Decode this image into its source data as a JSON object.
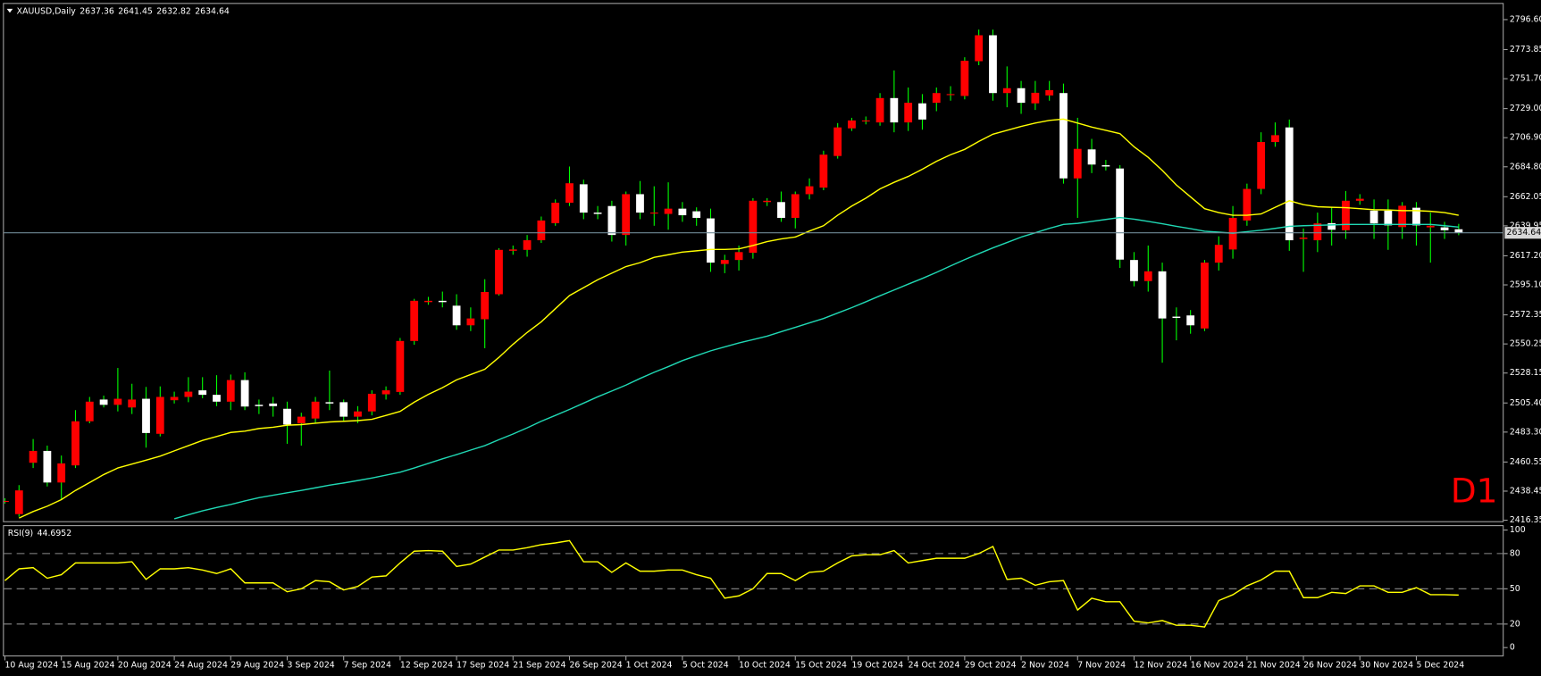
{
  "chart_data": [
    {
      "type": "candlestick",
      "title": "XAUUSD,Daily",
      "annotation": "D1",
      "annotation_color": "#ff0000",
      "up_color": "#ff0000",
      "down_color": "#ffffff",
      "wick_color": "#00ff00",
      "price_line_color": "#6f8a96",
      "grid": false,
      "categories": [
        "10 Aug 2024",
        null,
        null,
        null,
        "15 Aug 2024",
        null,
        null,
        null,
        "20 Aug 2024",
        null,
        null,
        null,
        "24 Aug 2024",
        null,
        null,
        null,
        "29 Aug 2024",
        null,
        null,
        null,
        "3 Sep 2024",
        null,
        null,
        null,
        "7 Sep 2024",
        null,
        null,
        null,
        "12 Sep 2024",
        null,
        null,
        null,
        "17 Sep 2024",
        null,
        null,
        null,
        "21 Sep 2024",
        null,
        null,
        null,
        "26 Sep 2024",
        null,
        null,
        null,
        "1 Oct 2024",
        null,
        null,
        null,
        "5 Oct 2024",
        null,
        null,
        null,
        "10 Oct 2024",
        null,
        null,
        null,
        "15 Oct 2024",
        null,
        null,
        null,
        "19 Oct 2024",
        null,
        null,
        null,
        "24 Oct 2024",
        null,
        null,
        null,
        "29 Oct 2024",
        null,
        null,
        null,
        "2 Nov 2024",
        null,
        null,
        null,
        "7 Nov 2024",
        null,
        null,
        null,
        "12 Nov 2024",
        null,
        null,
        null,
        "16 Nov 2024",
        null,
        null,
        null,
        "21 Nov 2024",
        null,
        null,
        null,
        "26 Nov 2024",
        null,
        null,
        null,
        "30 Nov 2024",
        null,
        null,
        null,
        "5 Dec 2024",
        null,
        null,
        null
      ],
      "open": [
        2431,
        2421,
        2460,
        2469,
        2445,
        2458,
        2491.5,
        2508,
        2504,
        2502,
        2508.6,
        2482,
        2507.5,
        2510,
        2515,
        2511.6,
        2506.4,
        2522.8,
        2504,
        2505,
        2501,
        2490,
        2493.6,
        2506,
        2506,
        2495,
        2499,
        2512,
        2513.8,
        2552.5,
        2582,
        2583,
        2579.3,
        2564.4,
        2569,
        2588,
        2621,
        2621.7,
        2629,
        2642,
        2657.5,
        2671.5,
        2650,
        2655,
        2633,
        2664,
        2650,
        2649,
        2653,
        2651,
        2645.6,
        2611,
        2614,
        2619.5,
        2658,
        2658,
        2646,
        2664,
        2669,
        2693,
        2714,
        2720,
        2718.5,
        2737,
        2718.5,
        2733,
        2733.4,
        2740,
        2738.6,
        2765,
        2784.7,
        2740.8,
        2744.5,
        2733,
        2739,
        2740.8,
        2676,
        2698,
        2686,
        2683.5,
        2614,
        2598,
        2605.4,
        2571,
        2571.9,
        2562,
        2612,
        2622,
        2644,
        2668,
        2703.6,
        2714.7,
        2630,
        2629,
        2642,
        2636.6,
        2659,
        2651.5,
        2651.5,
        2639,
        2653.7,
        2638.8,
        2638.8,
        2637.36
      ],
      "high": [
        2433,
        2443,
        2478,
        2473,
        2465.5,
        2500,
        2510,
        2511,
        2532,
        2520,
        2517.6,
        2518,
        2514,
        2525,
        2525,
        2526.5,
        2527,
        2528.7,
        2508,
        2510,
        2506.4,
        2498,
        2510,
        2530,
        2508,
        2503,
        2515,
        2518,
        2554.8,
        2584.5,
        2586,
        2590,
        2588,
        2578,
        2599.4,
        2623,
        2625,
        2633,
        2647,
        2660,
        2685,
        2675,
        2655,
        2659,
        2666,
        2674,
        2670,
        2673,
        2658,
        2654,
        2653,
        2618,
        2625,
        2661,
        2661,
        2666,
        2666,
        2676,
        2697,
        2718,
        2722,
        2723,
        2740.8,
        2758,
        2745,
        2740,
        2745,
        2746,
        2768,
        2789,
        2789,
        2761,
        2750,
        2750,
        2750,
        2748,
        2722,
        2706,
        2690,
        2686,
        2620,
        2625,
        2612,
        2578,
        2576,
        2614,
        2632,
        2655,
        2672,
        2711,
        2718.5,
        2720.7,
        2638,
        2650,
        2654,
        2666.4,
        2664,
        2660,
        2660,
        2658,
        2658,
        2650,
        2643,
        2641.45
      ],
      "low": [
        2429,
        2419,
        2456,
        2442,
        2432,
        2456,
        2490,
        2502,
        2499,
        2497,
        2471.5,
        2480,
        2505,
        2506,
        2509,
        2503,
        2500,
        2500,
        2497,
        2495,
        2474.4,
        2473,
        2490,
        2500,
        2492,
        2490,
        2496,
        2508,
        2511.6,
        2549.6,
        2580,
        2578,
        2561,
        2560,
        2547,
        2587,
        2618,
        2616.5,
        2627,
        2640,
        2655,
        2645,
        2645,
        2628,
        2625,
        2645,
        2640,
        2637,
        2643,
        2640,
        2605,
        2604,
        2606,
        2615,
        2655,
        2643,
        2638,
        2660,
        2667,
        2691,
        2712,
        2717,
        2716,
        2711,
        2712,
        2713,
        2727,
        2735,
        2736,
        2762,
        2735,
        2730,
        2725,
        2728,
        2735,
        2672,
        2646,
        2680,
        2682,
        2608,
        2594,
        2590,
        2536,
        2553,
        2558,
        2560,
        2606,
        2615,
        2640,
        2664,
        2700,
        2621,
        2605,
        2620,
        2625,
        2630,
        2656,
        2630,
        2621.7,
        2630,
        2625,
        2612,
        2630,
        2632.82
      ],
      "close": [
        2431,
        2439,
        2469,
        2445,
        2459.5,
        2491.5,
        2506.4,
        2504,
        2508.6,
        2508,
        2482.6,
        2510,
        2510,
        2514,
        2511.6,
        2506.4,
        2522.8,
        2502.7,
        2503,
        2503,
        2489,
        2495,
        2506.4,
        2505,
        2495,
        2499,
        2512.4,
        2515,
        2552.5,
        2583,
        2583,
        2582,
        2564.4,
        2569.6,
        2589.7,
        2621.7,
        2622,
        2629,
        2644,
        2657.5,
        2672.3,
        2650,
        2649,
        2633,
        2664,
        2650,
        2650,
        2653,
        2648,
        2646,
        2612,
        2614,
        2620,
        2659,
        2659,
        2646,
        2664,
        2670,
        2694,
        2714.7,
        2720,
        2720,
        2737,
        2718.5,
        2733.4,
        2720.7,
        2740.8,
        2740,
        2765.3,
        2784.7,
        2740.8,
        2744.5,
        2733.4,
        2741,
        2743,
        2676,
        2698.4,
        2686.5,
        2685,
        2614.3,
        2598,
        2605.4,
        2569.6,
        2570,
        2564.4,
        2612,
        2625.5,
        2646,
        2668,
        2703.6,
        2708.8,
        2629,
        2631,
        2641.8,
        2637,
        2659,
        2660.5,
        2641.8,
        2640.3,
        2655.2,
        2640.3,
        2640,
        2636.6,
        2634.64
      ],
      "lines": [
        {
          "color": "#ffff00",
          "values": [
            null,
            2418,
            2423,
            2427,
            2432,
            2439,
            2445,
            2451,
            2456,
            2459,
            2462,
            2465,
            2469,
            2473,
            2477,
            2480,
            2483,
            2484,
            2486,
            2487,
            2488.5,
            2489,
            2490,
            2491,
            2491.5,
            2492,
            2493,
            2496,
            2499,
            2506,
            2512,
            2517,
            2523,
            2527,
            2531,
            2540,
            2550,
            2559,
            2567,
            2577,
            2587,
            2593,
            2599,
            2604,
            2609,
            2612,
            2616,
            2618,
            2620,
            2621,
            2622,
            2622,
            2622.5,
            2625,
            2628,
            2630,
            2631.5,
            2636,
            2640,
            2648,
            2655,
            2661,
            2668,
            2673,
            2677.5,
            2683,
            2689,
            2694,
            2698,
            2704,
            2709.5,
            2712.5,
            2715.5,
            2718,
            2720,
            2721,
            2718,
            2715,
            2712.5,
            2710,
            2700,
            2692,
            2682,
            2671,
            2662,
            2653,
            2650,
            2648,
            2648,
            2649,
            2654,
            2659,
            2656,
            2654.5,
            2654,
            2653.7,
            2653,
            2652.2,
            2652,
            2651.5,
            2651.5,
            2651,
            2650,
            2648
          ]
        },
        {
          "color": "#20d8b4",
          "values": [
            null,
            null,
            null,
            null,
            null,
            null,
            null,
            null,
            null,
            null,
            null,
            null,
            2417.5,
            2420.5,
            2423.5,
            2426,
            2428.3,
            2431,
            2433.5,
            2435.3,
            2437.2,
            2439,
            2441,
            2443,
            2444.6,
            2446.5,
            2448.4,
            2450.6,
            2452.8,
            2456,
            2459.5,
            2463,
            2466.2,
            2469.6,
            2473,
            2477.5,
            2481.8,
            2486.5,
            2491.5,
            2496,
            2500.5,
            2505.3,
            2510.1,
            2514.5,
            2519,
            2524,
            2528.7,
            2533,
            2537.6,
            2541.3,
            2545,
            2548,
            2551,
            2553.6,
            2556.2,
            2559.5,
            2562.9,
            2566.2,
            2569.6,
            2573.7,
            2577.8,
            2582.3,
            2586.8,
            2591.2,
            2595.7,
            2600,
            2604.6,
            2609.5,
            2614.3,
            2618.8,
            2623.2,
            2627.3,
            2631.4,
            2634.7,
            2638,
            2641,
            2641.8,
            2643.3,
            2644.8,
            2646.3,
            2645,
            2643.3,
            2641.5,
            2639.6,
            2637.8,
            2635.9,
            2635.1,
            2634.4,
            2635.5,
            2636.6,
            2638,
            2639.6,
            2640,
            2640.3,
            2640.6,
            2641,
            2641,
            2641,
            2641,
            2641,
            2641,
            2641,
            2640,
            2639
          ]
        }
      ],
      "ylim": [
        2416.35,
        2796.6
      ],
      "yticks": [
        {
          "value": 2796.6,
          "label": "2796.60"
        },
        2773.85,
        {
          "value": 2751.7,
          "label": "2751.70"
        },
        {
          "value": 2729,
          "label": "2729.00"
        },
        {
          "value": 2706.9,
          "label": "2706.90"
        },
        {
          "value": 2684.8,
          "label": "2684.80"
        },
        2662.05,
        2639.95,
        {
          "value": 2617.2,
          "label": "2617.20"
        },
        {
          "value": 2595.1,
          "label": "2595.10"
        },
        2572.35,
        2550.25,
        2528.15,
        {
          "value": 2505.4,
          "label": "2505.40"
        },
        {
          "value": 2483.3,
          "label": "2483.30"
        },
        2460.55,
        2438.45,
        2416.35
      ]
    },
    {
      "type": "line",
      "title": "RSI(9)",
      "color": "#ffff00",
      "level_color": "#8c8c8c",
      "values": [
        57,
        67,
        68,
        59,
        62,
        72,
        72,
        72,
        72,
        73,
        58,
        67,
        67,
        68,
        66,
        63,
        67,
        55,
        55,
        55,
        47.5,
        50,
        57,
        56,
        49,
        52,
        60,
        61,
        72,
        82,
        82.5,
        82,
        69,
        71,
        77,
        83,
        83,
        85,
        87.5,
        89,
        91,
        73,
        73,
        64,
        72,
        65,
        65,
        66,
        66,
        62,
        59,
        42,
        44,
        50,
        63,
        63,
        57,
        64,
        65,
        72,
        78,
        79,
        79,
        82.5,
        72,
        74,
        76,
        76,
        76,
        80,
        86,
        58,
        59,
        53,
        56,
        57,
        32,
        42,
        39,
        39,
        22.5,
        21,
        23,
        19,
        19,
        17.5,
        40,
        45,
        52.5,
        57.5,
        65,
        65,
        42.5,
        42.5,
        47,
        46,
        52.5,
        52.5,
        47,
        47,
        51,
        45,
        45,
        44.6952
      ],
      "levels": [
        20,
        50,
        80
      ],
      "ylim": [
        0,
        100
      ],
      "yticks": [
        0,
        20,
        50,
        80,
        100
      ]
    }
  ]
}
